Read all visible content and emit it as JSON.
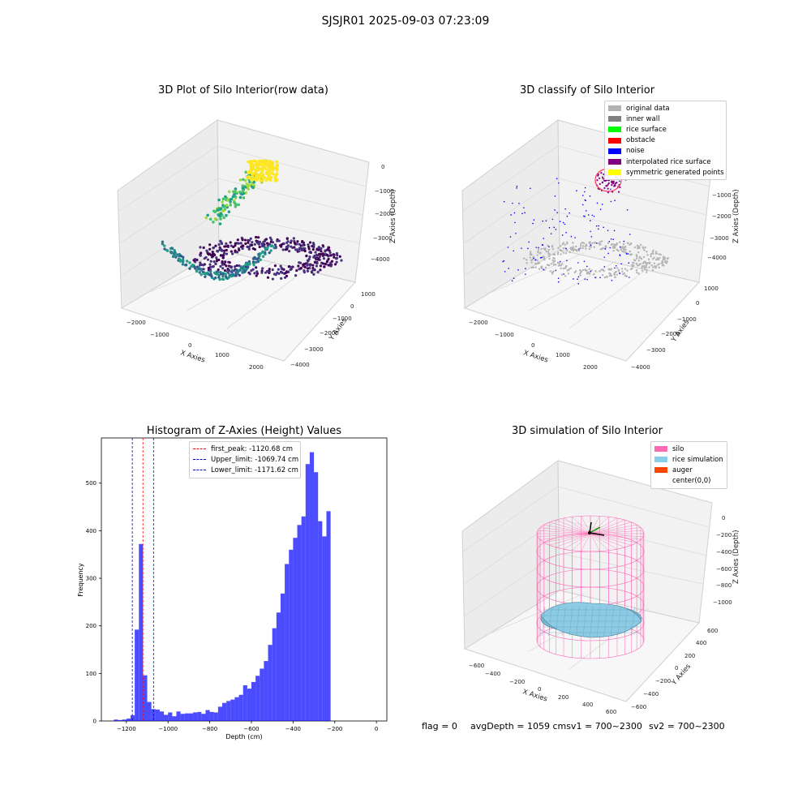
{
  "suptitle": "SJSJR01 2025-09-03 07:23:09",
  "panels": {
    "raw": {
      "title": "3D Plot of Silo Interior(row data)",
      "xlabel": "X Axies",
      "ylabel": "Y Axies",
      "zlabel": "Z Axies (Depth)",
      "xticks": [
        "−2000",
        "−1000",
        "0",
        "1000",
        "2000"
      ],
      "yticks": [
        "1000",
        "0",
        "−1000",
        "−2000",
        "−3000",
        "−4000"
      ],
      "zticks": [
        "0",
        "−1000",
        "−2000",
        "−3000",
        "−4000"
      ]
    },
    "classify": {
      "title": "3D classify of Silo Interior",
      "xlabel": "X Axies",
      "ylabel": "Y Axies",
      "zlabel": "Z Axies (Depth)",
      "xticks": [
        "−2000",
        "−1000",
        "0",
        "1000",
        "2000"
      ],
      "yticks": [
        "1000",
        "0",
        "−1000",
        "−2000",
        "−3000",
        "−4000"
      ],
      "zticks": [
        "0",
        "−1000",
        "−2000",
        "−3000",
        "−4000"
      ],
      "legend": [
        {
          "label": "original data",
          "color": "#b3b3b3"
        },
        {
          "label": "inner wall",
          "color": "#808080"
        },
        {
          "label": "rice surface",
          "color": "#00ff00"
        },
        {
          "label": "obstacle",
          "color": "#ff0000"
        },
        {
          "label": "noise",
          "color": "#0000ff"
        },
        {
          "label": "interpolated rice surface",
          "color": "#800080"
        },
        {
          "label": "symmetric generated points",
          "color": "#ffff00"
        }
      ]
    },
    "simulation": {
      "title": "3D simulation of Silo Interior",
      "xlabel": "X Axies",
      "ylabel": "Y Axies",
      "zlabel": "Z Axies (Depth)",
      "xticks": [
        "−600",
        "−400",
        "−200",
        "0",
        "200",
        "400",
        "600"
      ],
      "yticks": [
        "600",
        "400",
        "200",
        "0",
        "−200",
        "−400",
        "−600"
      ],
      "zticks": [
        "0",
        "−200",
        "−400",
        "−600",
        "−800",
        "−1000"
      ],
      "legend": [
        {
          "label": "silo",
          "color": "#ff69b4"
        },
        {
          "label": "rice simulation",
          "color": "#87ceeb"
        },
        {
          "label": "auger",
          "color": "#ff4500"
        },
        {
          "label": "center(0,0)",
          "color": "#ffffff"
        }
      ]
    }
  },
  "status": {
    "flag": "flag = 0",
    "avg": "avgDepth = 1059 cmsv1 = 700~2300",
    "sv2": "sv2 = 700~2300"
  },
  "chart_data": [
    {
      "type": "scatter",
      "title": "3D Plot of Silo Interior(row data)",
      "xlabel": "X Axies",
      "ylabel": "Y Axies",
      "zlabel": "Z Axies (Depth)",
      "xlim": [
        -2000,
        2000
      ],
      "ylim": [
        -4000,
        1000
      ],
      "zlim": [
        -4500,
        0
      ],
      "grid": true
    },
    {
      "type": "scatter",
      "title": "3D classify of Silo Interior",
      "xlabel": "X Axies",
      "ylabel": "Y Axies",
      "zlabel": "Z Axies (Depth)",
      "xlim": [
        -2000,
        2000
      ],
      "ylim": [
        -4000,
        1000
      ],
      "zlim": [
        -4500,
        0
      ],
      "grid": true,
      "legend_position": "top-right"
    },
    {
      "type": "bar",
      "title": "Histogram of Z-Axies (Height) Values",
      "xlabel": "Depth (cm)",
      "ylabel": "Frequency",
      "xlim": [
        -1320,
        50
      ],
      "ylim": [
        0,
        595
      ],
      "xticks": [
        -1200,
        -1000,
        -800,
        -600,
        -400,
        -200,
        0
      ],
      "yticks": [
        0,
        100,
        200,
        300,
        400,
        500
      ],
      "bin_width": 20,
      "bins_start": [
        -1280,
        -1260,
        -1240,
        -1220,
        -1200,
        -1180,
        -1160,
        -1140,
        -1120,
        -1100,
        -1080,
        -1060,
        -1040,
        -1020,
        -1000,
        -980,
        -960,
        -940,
        -920,
        -900,
        -880,
        -860,
        -840,
        -820,
        -800,
        -780,
        -760,
        -740,
        -720,
        -700,
        -680,
        -660,
        -640,
        -620,
        -600,
        -580,
        -560,
        -540,
        -520,
        -500,
        -480,
        -460,
        -440,
        -420,
        -400,
        -380,
        -360,
        -340,
        -320,
        -300,
        -280,
        -260,
        -240,
        -220,
        -200,
        -180,
        -160,
        -140,
        -120,
        -100,
        -80,
        -60,
        -40,
        -20
      ],
      "values": [
        0,
        3,
        2,
        3,
        5,
        12,
        192,
        372,
        96,
        40,
        25,
        24,
        20,
        13,
        18,
        10,
        20,
        15,
        16,
        16,
        18,
        19,
        15,
        23,
        19,
        18,
        30,
        38,
        42,
        45,
        50,
        55,
        75,
        68,
        82,
        95,
        110,
        126,
        160,
        195,
        228,
        268,
        330,
        360,
        385,
        412,
        430,
        540,
        565,
        523,
        420,
        388,
        441,
        0,
        0,
        0,
        0,
        0,
        0,
        0,
        0,
        0,
        0,
        0
      ],
      "series": [
        {
          "name": "",
          "color": "#0000ff",
          "alpha": 0.7
        }
      ],
      "lines": [
        {
          "name": "first_peak: -1120.68 cm",
          "x": -1120.68,
          "color": "#ff0000"
        },
        {
          "name": "Upper_limit: -1069.74 cm",
          "x": -1069.74,
          "color": "#0000cc"
        },
        {
          "name": "Lower_limit: -1171.62 cm",
          "x": -1171.62,
          "color": "#0000cc"
        }
      ],
      "legend_position": "top-center"
    },
    {
      "type": "scatter",
      "title": "3D simulation of Silo Interior",
      "xlabel": "X Axies",
      "ylabel": "Y Axies",
      "zlabel": "Z Axies (Depth)",
      "xlim": [
        -600,
        600
      ],
      "ylim": [
        -600,
        600
      ],
      "zlim": [
        -1100,
        0
      ],
      "grid": true,
      "legend_position": "top-right"
    }
  ]
}
